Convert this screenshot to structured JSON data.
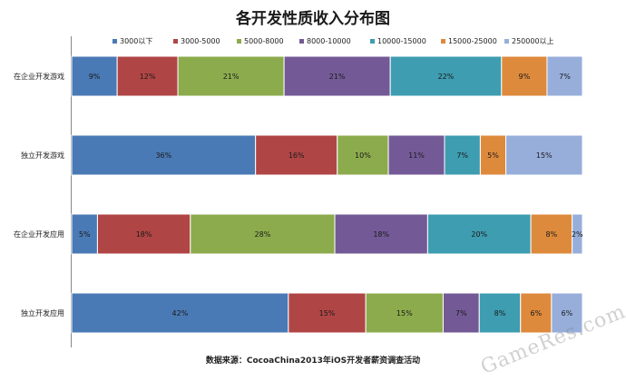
{
  "chart_data": {
    "type": "bar",
    "orientation": "horizontal",
    "stacked": true,
    "title": "各开发性质收入分布图",
    "source": "数据来源：CocoaChina2013年iOS开发者薪资调查活动",
    "categories": [
      "在企业开发游戏",
      "独立开发游戏",
      "在企业开发应用",
      "独立开发应用"
    ],
    "series": [
      {
        "name": "3000以下",
        "color": "#4a7ab5",
        "values": [
          9,
          36,
          5,
          42
        ]
      },
      {
        "name": "3000-5000",
        "color": "#b04545",
        "values": [
          12,
          16,
          18,
          15
        ]
      },
      {
        "name": "5000-8000",
        "color": "#8cab4d",
        "values": [
          21,
          10,
          28,
          15
        ]
      },
      {
        "name": "8000-10000",
        "color": "#735a96",
        "values": [
          21,
          11,
          18,
          7
        ]
      },
      {
        "name": "10000-15000",
        "color": "#3e9db0",
        "values": [
          22,
          7,
          20,
          8
        ]
      },
      {
        "name": "15000-25000",
        "color": "#de8a3c",
        "values": [
          9,
          5,
          8,
          6
        ]
      },
      {
        "name": "250000以上",
        "color": "#97aedb",
        "values": [
          7,
          15,
          2,
          6
        ]
      }
    ],
    "value_suffix": "%",
    "legend": "top",
    "grid": false
  },
  "watermark": "GameRes.com"
}
